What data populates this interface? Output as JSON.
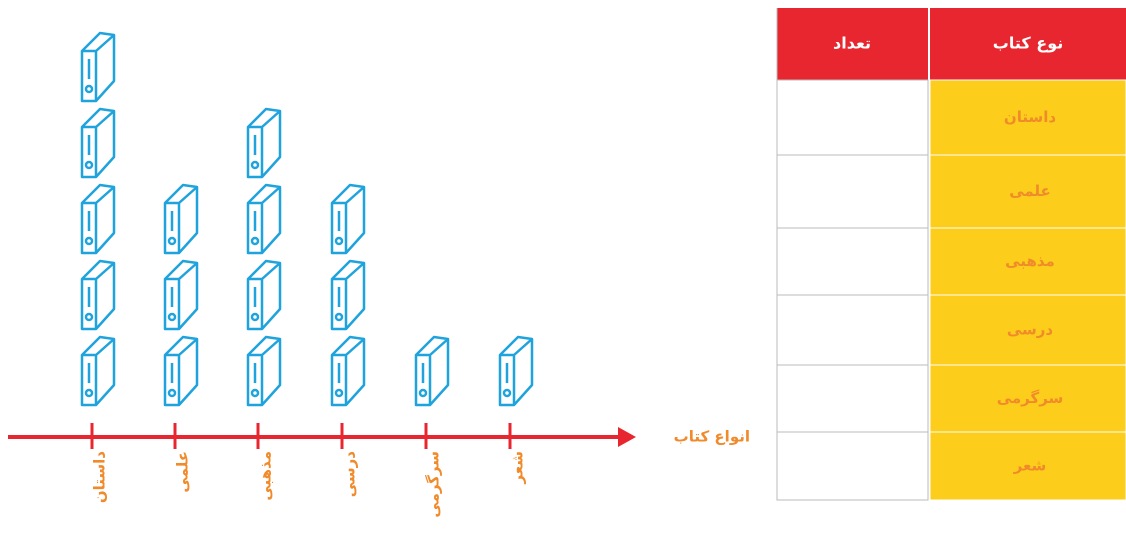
{
  "chart_data": {
    "type": "pictograph",
    "x_label": "انواع کتاب",
    "categories": [
      "داستان",
      "علمی",
      "مذهبی",
      "درسی",
      "سرگرمی",
      "شعر"
    ],
    "values": [
      5,
      3,
      4,
      3,
      1,
      1
    ],
    "color": "#1fa3dc",
    "axis_color": "#e8262f"
  },
  "table": {
    "header": [
      "تعداد",
      "نوع کتاب"
    ]
  }
}
